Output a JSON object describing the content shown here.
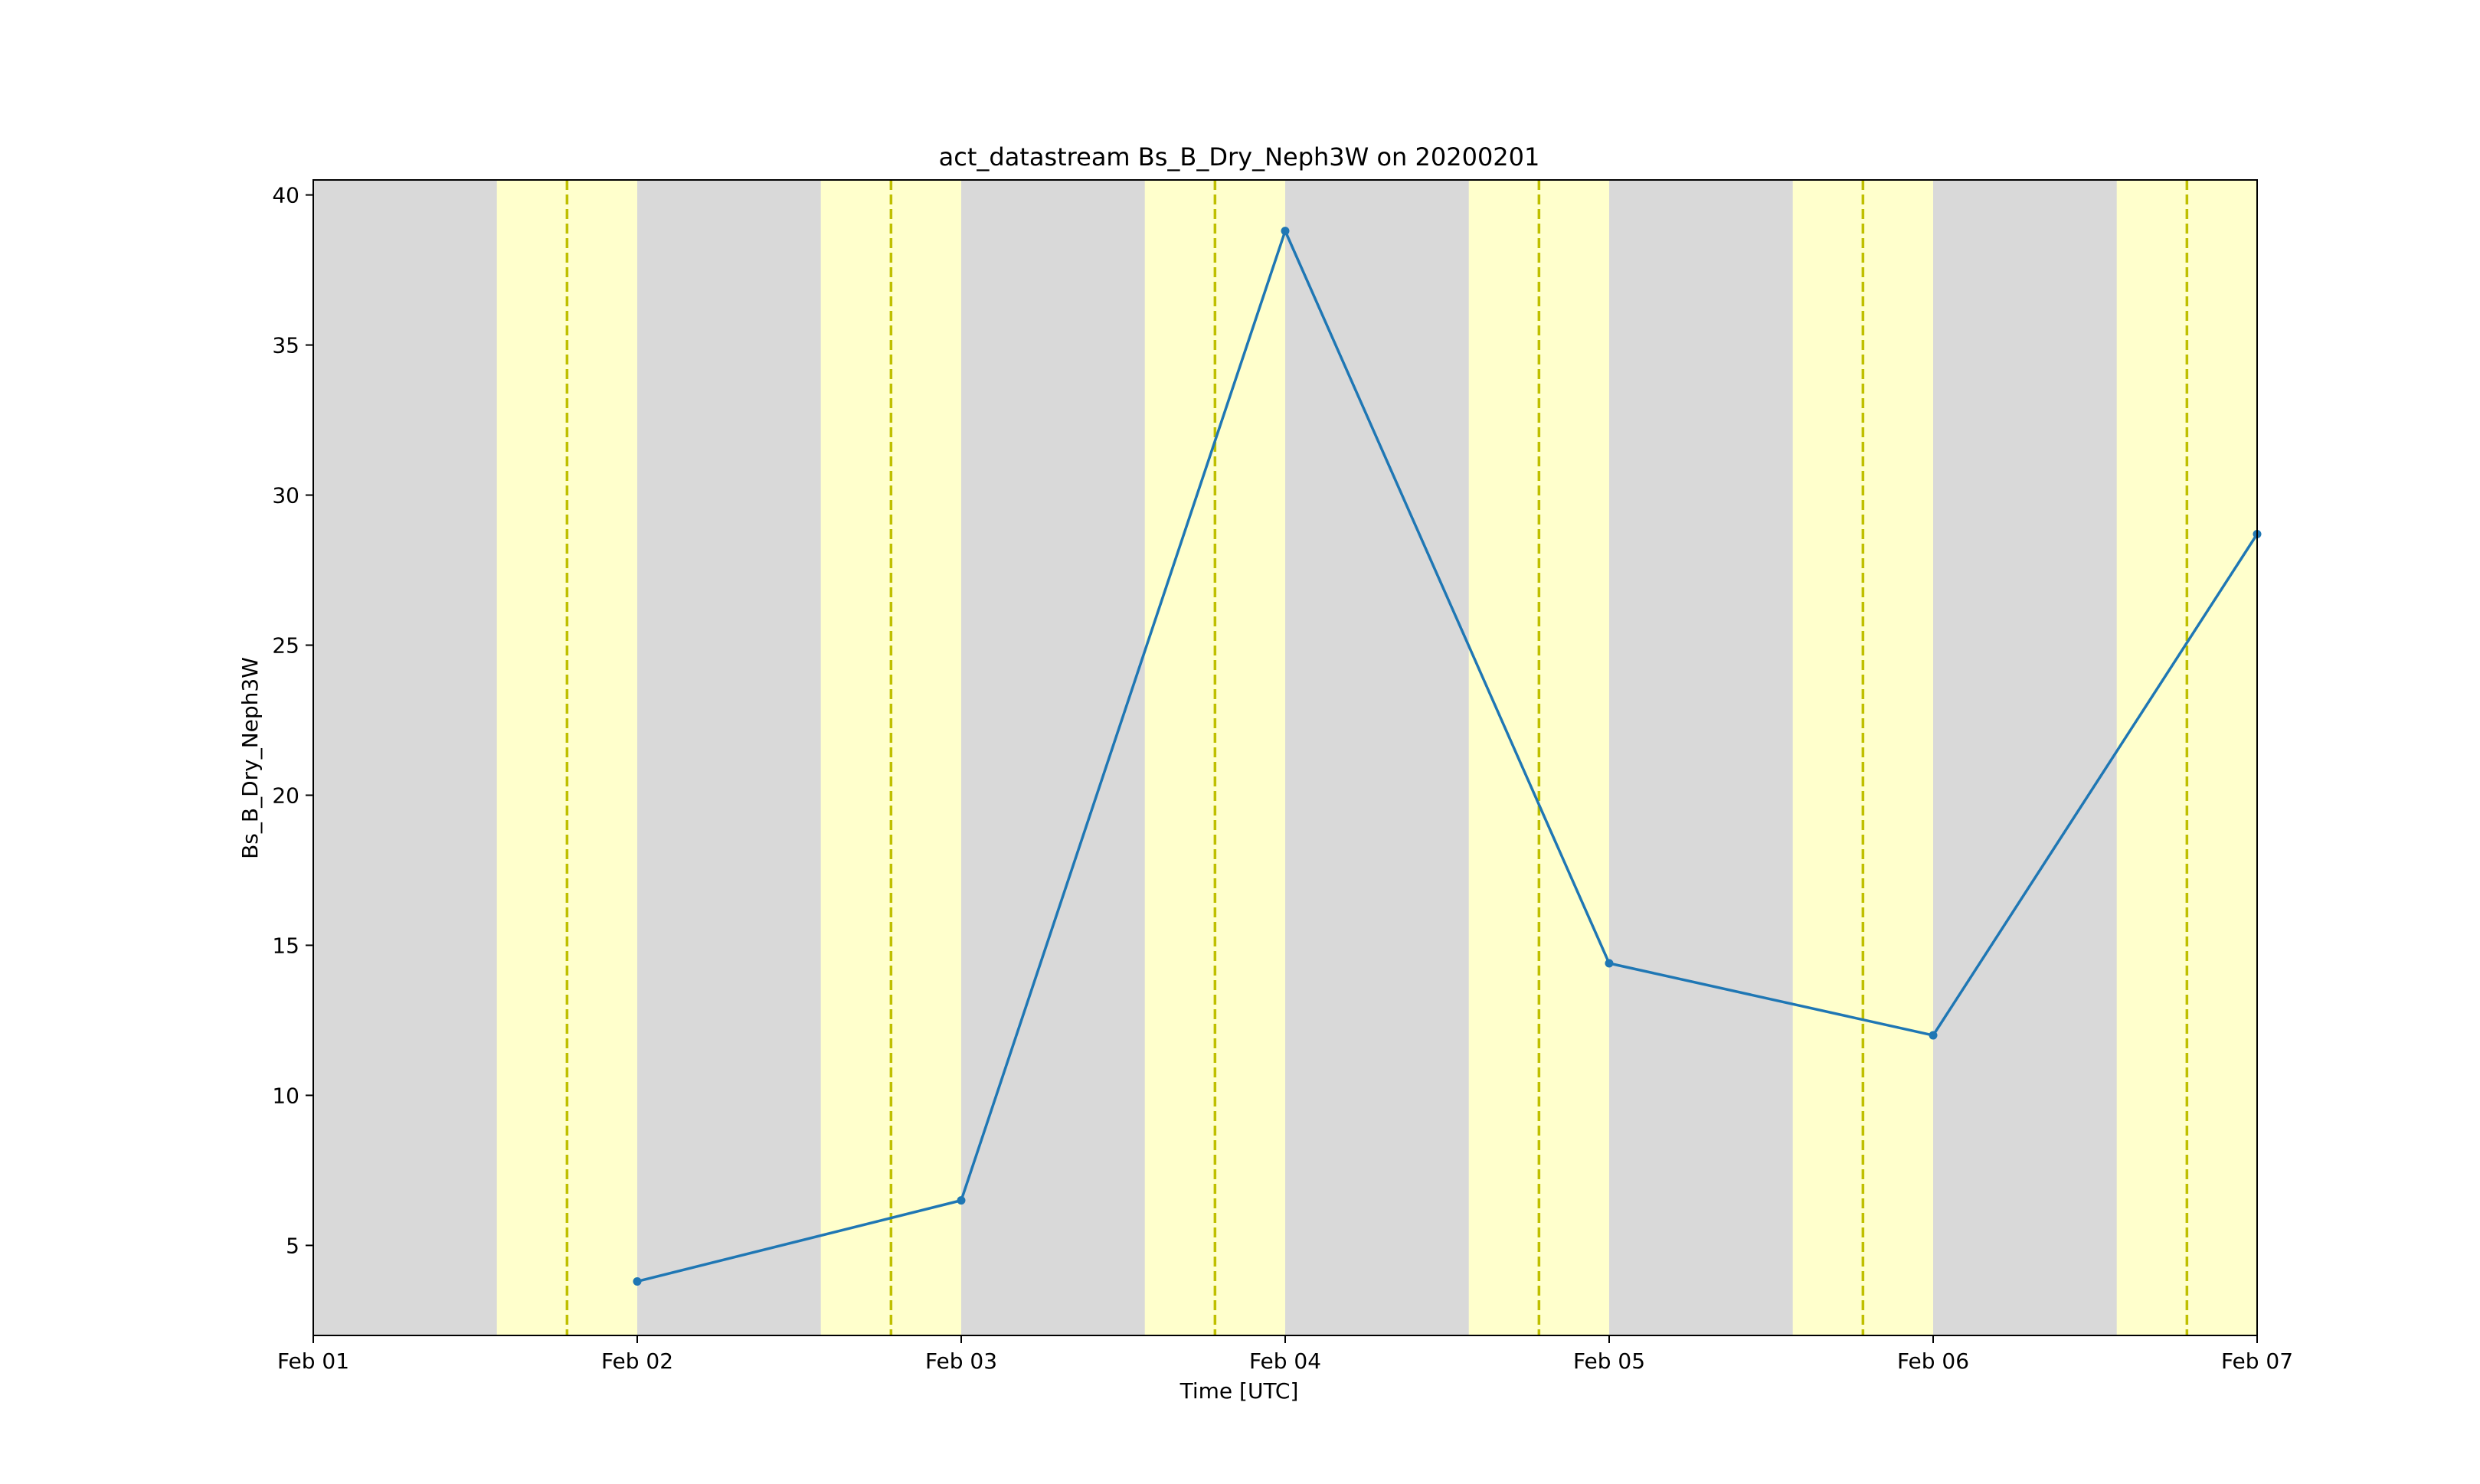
{
  "chart_data": {
    "type": "line",
    "title": "act_datastream Bs_B_Dry_Neph3W on 20200201",
    "xlabel": "Time [UTC]",
    "ylabel": "Bs_B_Dry_Neph3W",
    "x_range": [
      "2020-02-01T00:00",
      "2020-02-07T00:00"
    ],
    "ylim": [
      2.0,
      40.5
    ],
    "x_ticks": [
      {
        "x": "2020-02-01T00:00",
        "label": "Feb 01"
      },
      {
        "x": "2020-02-02T00:00",
        "label": "Feb 02"
      },
      {
        "x": "2020-02-03T00:00",
        "label": "Feb 03"
      },
      {
        "x": "2020-02-04T00:00",
        "label": "Feb 04"
      },
      {
        "x": "2020-02-05T00:00",
        "label": "Feb 05"
      },
      {
        "x": "2020-02-06T00:00",
        "label": "Feb 06"
      },
      {
        "x": "2020-02-07T00:00",
        "label": "Feb 07"
      }
    ],
    "y_ticks": [
      {
        "y": 5,
        "label": "5"
      },
      {
        "y": 10,
        "label": "10"
      },
      {
        "y": 15,
        "label": "15"
      },
      {
        "y": 20,
        "label": "20"
      },
      {
        "y": 25,
        "label": "25"
      },
      {
        "y": 30,
        "label": "30"
      },
      {
        "y": 35,
        "label": "35"
      },
      {
        "y": 40,
        "label": "40"
      }
    ],
    "series": [
      {
        "color": "#1f77b4",
        "marker": "dot",
        "points": [
          {
            "x": "2020-02-02T00:00",
            "y": 3.8
          },
          {
            "x": "2020-02-03T00:00",
            "y": 6.5
          },
          {
            "x": "2020-02-04T00:00",
            "y": 38.8
          },
          {
            "x": "2020-02-05T00:00",
            "y": 14.4
          },
          {
            "x": "2020-02-06T00:00",
            "y": 12.0
          },
          {
            "x": "2020-02-07T00:00",
            "y": 28.7
          }
        ]
      }
    ],
    "background": {
      "night_color": "#d9d9d9",
      "day_color": "#ffffcc",
      "day_periods": [
        {
          "start": "2020-02-01T13:36",
          "end": "2020-02-02T00:00"
        },
        {
          "start": "2020-02-02T13:36",
          "end": "2020-02-03T00:00"
        },
        {
          "start": "2020-02-03T13:36",
          "end": "2020-02-04T00:00"
        },
        {
          "start": "2020-02-04T13:36",
          "end": "2020-02-05T00:00"
        },
        {
          "start": "2020-02-05T13:36",
          "end": "2020-02-06T00:00"
        },
        {
          "start": "2020-02-06T13:36",
          "end": "2020-02-07T00:00"
        }
      ],
      "noon_lines": [
        "2020-02-01T18:48",
        "2020-02-02T18:48",
        "2020-02-03T18:48",
        "2020-02-04T18:48",
        "2020-02-05T18:48",
        "2020-02-06T18:48"
      ],
      "noon_line_color": "#bfbf00",
      "noon_line_style": "dashed"
    },
    "grid": false,
    "legend": "none"
  }
}
